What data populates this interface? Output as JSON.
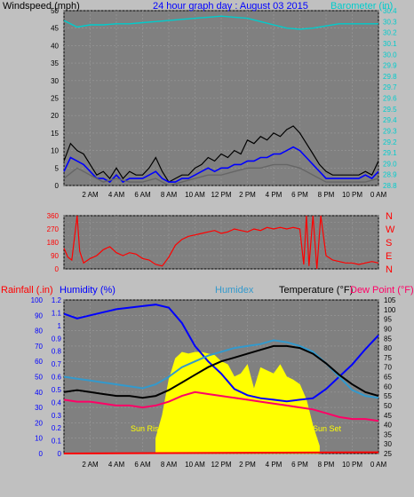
{
  "top_panel": {
    "left_label": "Windspeed (mph)",
    "title": "24 hour graph day : August 03 2015",
    "right_label": "Barometer (in)"
  },
  "middle_panel": {
    "direction_labels": [
      "N",
      "W",
      "S",
      "E",
      "N"
    ]
  },
  "bottom_panel": {
    "label_rain": "Rainfall (.in)",
    "label_humidity": "Humidity (%)",
    "label_humidex": "Humidex",
    "label_temperature": "Temperature (°F)",
    "label_dewpoint": "Dew Point (°F)",
    "sunrise_label": "Sun Rise",
    "sunset_label": "Sun Set"
  },
  "colors": {
    "background": "#c0c0c0",
    "plot_bg": "#808080",
    "wind": "#000000",
    "gust": "#666666",
    "avg_wind": "#0000ff",
    "barometer": "#00cccc",
    "direction": "#ff0000",
    "humidity": "#0000ff",
    "humidex": "#3399cc",
    "temperature": "#000000",
    "dewpoint": "#ff0066",
    "solar": "#ffff00",
    "rain": "#ff0000"
  },
  "chart_data": [
    {
      "type": "line",
      "name": "wind-barometer",
      "x_ticks": [
        "2 AM",
        "4 AM",
        "6 AM",
        "8 AM",
        "10 AM",
        "12 PM",
        "2 PM",
        "4 PM",
        "6 PM",
        "8 PM",
        "10 PM",
        "0 AM"
      ],
      "y_left_ticks": [
        0,
        5,
        10,
        15,
        20,
        25,
        30,
        35,
        40,
        45,
        50
      ],
      "y_left_range": [
        0,
        50
      ],
      "y_right_ticks": [
        28.8,
        28.9,
        29.0,
        29.1,
        29.2,
        29.3,
        29.4,
        29.5,
        29.6,
        29.7,
        29.8,
        29.9,
        30.0,
        30.1,
        30.2,
        30.3,
        30.4
      ],
      "y_right_range": [
        28.8,
        30.4
      ],
      "x_range_hours": [
        0,
        24
      ],
      "series": [
        {
          "key": "wind",
          "hours": [
            0,
            0.5,
            1,
            1.5,
            2,
            2.5,
            3,
            3.5,
            4,
            4.5,
            5,
            5.5,
            6,
            6.5,
            7,
            7.5,
            8,
            8.5,
            9,
            9.5,
            10,
            10.5,
            11,
            11.5,
            12,
            12.5,
            13,
            13.5,
            14,
            14.5,
            15,
            15.5,
            16,
            16.5,
            17,
            17.5,
            18,
            18.5,
            19,
            19.5,
            20,
            20.5,
            21,
            21.5,
            22,
            22.5,
            23,
            23.5,
            24
          ],
          "values": [
            7,
            12,
            10,
            9,
            6,
            3,
            4,
            2,
            5,
            2,
            4,
            3,
            3,
            5,
            8,
            4,
            1,
            2,
            3,
            3,
            5,
            6,
            8,
            7,
            9,
            8,
            10,
            9,
            13,
            12,
            14,
            13,
            15,
            14,
            16,
            17,
            15,
            12,
            9,
            6,
            4,
            3,
            3,
            3,
            3,
            3,
            4,
            3,
            7
          ]
        },
        {
          "key": "avg_wind",
          "hours": [
            0,
            0.5,
            1,
            1.5,
            2,
            2.5,
            3,
            3.5,
            4,
            4.5,
            5,
            5.5,
            6,
            6.5,
            7,
            7.5,
            8,
            8.5,
            9,
            9.5,
            10,
            10.5,
            11,
            11.5,
            12,
            12.5,
            13,
            13.5,
            14,
            14.5,
            15,
            15.5,
            16,
            16.5,
            17,
            17.5,
            18,
            18.5,
            19,
            19.5,
            20,
            20.5,
            21,
            21.5,
            22,
            22.5,
            23,
            23.5,
            24
          ],
          "values": [
            4,
            8,
            7,
            6,
            4,
            2,
            2,
            1,
            3,
            1,
            2,
            2,
            2,
            3,
            4,
            2,
            1,
            1,
            2,
            2,
            3,
            4,
            5,
            4,
            5,
            5,
            6,
            6,
            7,
            7,
            8,
            8,
            9,
            9,
            10,
            11,
            10,
            8,
            6,
            4,
            2,
            2,
            2,
            2,
            2,
            2,
            3,
            2,
            4
          ]
        },
        {
          "key": "gust",
          "hours": [
            0,
            1,
            2,
            3,
            4,
            5,
            6,
            7,
            8,
            9,
            10,
            11,
            12,
            13,
            14,
            15,
            16,
            17,
            18,
            19,
            20,
            21,
            22,
            23,
            24
          ],
          "values": [
            2,
            5,
            3,
            1,
            2,
            1,
            1,
            2,
            0,
            1,
            2,
            3,
            3,
            4,
            5,
            5,
            6,
            6,
            5,
            3,
            1,
            1,
            1,
            1,
            2
          ]
        },
        {
          "key": "barometer",
          "hours": [
            0,
            1,
            2,
            3,
            4,
            5,
            6,
            7,
            8,
            9,
            10,
            11,
            12,
            13,
            14,
            15,
            16,
            17,
            18,
            19,
            20,
            21,
            22,
            23,
            24
          ],
          "values": [
            30.31,
            30.25,
            30.27,
            30.27,
            30.28,
            30.28,
            30.29,
            30.3,
            30.31,
            30.32,
            30.33,
            30.34,
            30.35,
            30.34,
            30.33,
            30.3,
            30.27,
            30.24,
            30.23,
            30.24,
            30.26,
            30.28,
            30.28,
            30.28,
            30.28
          ]
        }
      ]
    },
    {
      "type": "line",
      "name": "wind-direction",
      "y_range": [
        0,
        360
      ],
      "y_ticks": [
        0,
        45,
        90,
        135,
        180,
        225,
        270,
        315,
        360
      ],
      "direction_labels": [
        "N",
        "W",
        "S",
        "E",
        "N"
      ],
      "series": [
        {
          "key": "direction",
          "hours": [
            0,
            0.3,
            0.6,
            1,
            1.2,
            1.5,
            2,
            2.5,
            3,
            3.5,
            4,
            4.5,
            5,
            5.5,
            6,
            6.5,
            7,
            7.5,
            8,
            8.5,
            9,
            9.5,
            10,
            10.5,
            11,
            11.5,
            12,
            12.5,
            13,
            13.5,
            14,
            14.5,
            15,
            15.5,
            16,
            16.5,
            17,
            17.5,
            18,
            18.3,
            18.5,
            18.7,
            19,
            19.3,
            19.6,
            20,
            20.5,
            21,
            21.5,
            22,
            22.5,
            23,
            23.5,
            24
          ],
          "values": [
            140,
            80,
            60,
            360,
            120,
            40,
            70,
            90,
            130,
            150,
            110,
            90,
            110,
            100,
            70,
            60,
            30,
            20,
            80,
            160,
            200,
            220,
            230,
            240,
            250,
            260,
            240,
            250,
            270,
            260,
            250,
            270,
            260,
            280,
            270,
            280,
            270,
            280,
            270,
            30,
            360,
            20,
            360,
            0,
            360,
            90,
            60,
            50,
            40,
            40,
            30,
            40,
            50,
            40
          ]
        }
      ]
    },
    {
      "type": "line",
      "name": "temp-humidity-rain",
      "y_rain_range": [
        0,
        1.2
      ],
      "y_rain_ticks": [
        0,
        0.1,
        0.2,
        0.3,
        0.4,
        0.5,
        0.6,
        0.7,
        0.8,
        0.9,
        1.0,
        1.1,
        1.2
      ],
      "y_humidity_range": [
        0,
        100
      ],
      "y_humidity_ticks": [
        0,
        10,
        20,
        30,
        40,
        50,
        60,
        70,
        80,
        90,
        100
      ],
      "y_temp_range": [
        25,
        105
      ],
      "y_temp_ticks": [
        25,
        30,
        35,
        40,
        45,
        50,
        55,
        60,
        65,
        70,
        75,
        80,
        85,
        90,
        95,
        100,
        105
      ],
      "series": [
        {
          "key": "humidity",
          "hours": [
            0,
            1,
            2,
            3,
            4,
            5,
            6,
            7,
            8,
            9,
            10,
            11,
            12,
            13,
            14,
            15,
            16,
            17,
            18,
            19,
            20,
            21,
            22,
            23,
            24
          ],
          "values": [
            91,
            88,
            90,
            92,
            94,
            95,
            96,
            97,
            95,
            85,
            70,
            60,
            52,
            42,
            38,
            36,
            35,
            34,
            35,
            36,
            42,
            50,
            58,
            68,
            77
          ]
        },
        {
          "key": "humidex",
          "hours": [
            0,
            1,
            2,
            3,
            4,
            5,
            6,
            7,
            8,
            9,
            10,
            11,
            12,
            13,
            14,
            15,
            16,
            17,
            18,
            19,
            20,
            21,
            22,
            23,
            24
          ],
          "values": [
            65,
            64,
            63,
            62,
            61,
            60,
            59,
            61,
            65,
            70,
            73,
            76,
            78,
            80,
            81,
            82,
            84,
            83,
            81,
            78,
            72,
            65,
            58,
            55,
            54
          ]
        },
        {
          "key": "temperature",
          "hours": [
            0,
            1,
            2,
            3,
            4,
            5,
            6,
            7,
            8,
            9,
            10,
            11,
            12,
            13,
            14,
            15,
            16,
            17,
            18,
            19,
            20,
            21,
            22,
            23,
            24
          ],
          "values": [
            57,
            58,
            57,
            56,
            55,
            55,
            54,
            55,
            58,
            62,
            66,
            70,
            73,
            75,
            77,
            79,
            81,
            81,
            80,
            77,
            72,
            66,
            61,
            57,
            55
          ]
        },
        {
          "key": "dewpoint",
          "hours": [
            0,
            1,
            2,
            3,
            4,
            5,
            6,
            7,
            8,
            9,
            10,
            11,
            12,
            13,
            14,
            15,
            16,
            17,
            18,
            19,
            20,
            21,
            22,
            23,
            24
          ],
          "values": [
            53,
            52,
            52,
            51,
            50,
            50,
            49,
            50,
            52,
            55,
            57,
            56,
            55,
            54,
            53,
            52,
            51,
            50,
            49,
            48,
            46,
            44,
            43,
            43,
            42
          ]
        },
        {
          "key": "solar",
          "hours": [
            7,
            7.5,
            8,
            8.5,
            9,
            9.5,
            10,
            10.5,
            11,
            11.5,
            12,
            12.5,
            13,
            13.5,
            14,
            14.5,
            15,
            15.5,
            16,
            16.5,
            17,
            17.5,
            18,
            18.5,
            19,
            19.5
          ],
          "values": [
            10,
            25,
            48,
            62,
            66,
            65,
            66,
            66,
            65,
            64,
            60,
            58,
            50,
            52,
            58,
            42,
            56,
            54,
            52,
            58,
            50,
            48,
            45,
            35,
            18,
            5
          ]
        },
        {
          "key": "rain",
          "hours": [
            0,
            24
          ],
          "values": [
            0.0,
            0.01
          ]
        }
      ]
    }
  ]
}
